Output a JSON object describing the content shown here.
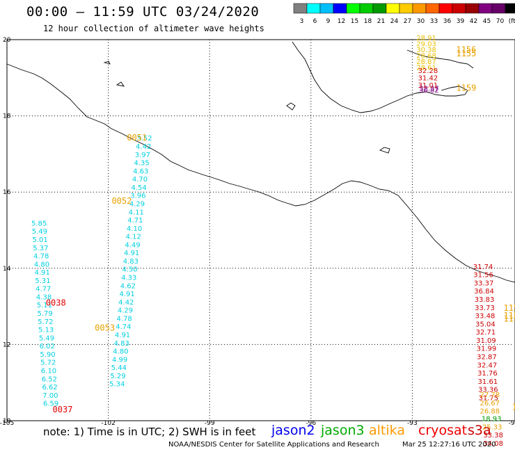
{
  "header": {
    "title": "00:00 – 11:59 UTC 03/24/2020",
    "subtitle": "12 hour collection of altimeter wave heights"
  },
  "colorbar": {
    "ticks": [
      "3",
      "6",
      "9",
      "12",
      "15",
      "18",
      "21",
      "24",
      "27",
      "30",
      "33",
      "36",
      "39",
      "42",
      "45",
      "70",
      "(ft)"
    ],
    "colors": [
      "#808080",
      "#00ffff",
      "#00bfff",
      "#0000ff",
      "#00ff00",
      "#00cc00",
      "#009900",
      "#ffff00",
      "#ffcc00",
      "#ff9900",
      "#ff6600",
      "#ff0000",
      "#cc0000",
      "#990000",
      "#800080",
      "#660066",
      "#000000"
    ]
  },
  "axes": {
    "x_ticks": [
      {
        "value": -105,
        "label": "-105"
      },
      {
        "value": -102,
        "label": "-102"
      },
      {
        "value": -99,
        "label": "-99"
      },
      {
        "value": -96,
        "label": "-96"
      },
      {
        "value": -93,
        "label": "-93"
      },
      {
        "value": -90,
        "label": "-90"
      }
    ],
    "y_ticks": [
      {
        "value": 20,
        "label": "20"
      },
      {
        "value": 18,
        "label": "18"
      },
      {
        "value": 16,
        "label": "16"
      },
      {
        "value": 14,
        "label": "14"
      },
      {
        "value": 12,
        "label": "12"
      },
      {
        "value": 10,
        "label": "10"
      }
    ],
    "xlim": [
      -105,
      -90
    ],
    "ylim": [
      10,
      20
    ]
  },
  "tracks": [
    {
      "color": "#00d0e0",
      "lon": -101.16,
      "lat_start": 17.35,
      "lat_step": -0.215,
      "values": [
        "3.52",
        "4.42",
        "3.97",
        "4.35",
        "4.63",
        "4.70",
        "4.54",
        "3.96",
        "4.29",
        "4.11",
        "4.71",
        "4.10",
        "4.12",
        "4.49",
        "4.91",
        "4.83",
        "4.50",
        "4.33",
        "4.62",
        "4.91",
        "4.42",
        "4.29",
        "4.78",
        "4.74",
        "4.91",
        "4.83",
        "4.80",
        "4.99",
        "5.44",
        "5.29",
        "5.34"
      ],
      "lon_drift": -0.027
    },
    {
      "color": "#00d0e0",
      "lon": -104.28,
      "lat_start": 15.12,
      "lat_step": -0.215,
      "values": [
        "5.85",
        "5.49",
        "5.01",
        "5.37",
        "4.78",
        "4.80",
        "4.91",
        "5.31",
        "4.77",
        "4.38",
        "5.11",
        "5.79",
        "5.72",
        "5.13",
        "5.49",
        "6.02",
        "5.90",
        "5.72",
        "6.10",
        "6.52",
        "6.62",
        "7.00",
        "6.59"
      ],
      "lon_drift": 0.016
    },
    {
      "color": "#cc0000",
      "lon": -91.2,
      "lat_start": 13.98,
      "lat_step": -0.215,
      "values": [
        "31.74",
        "31.56",
        "33.37",
        "36.84",
        "33.83",
        "33.73",
        "33.48",
        "35.04",
        "32.71",
        "31.09",
        "31.99",
        "32.87",
        "32.47",
        "31.76",
        "31.61",
        "33.36",
        "31.75"
      ],
      "lon_drift": 0.01
    },
    {
      "color": "#e8a000",
      "lon": -91.0,
      "lat_start": 10.62,
      "lat_step": -0.215,
      "values": [
        "27.78",
        "26.67",
        "26.88"
      ]
    },
    {
      "color": "#009900",
      "lon": -90.95,
      "lat_start": 9.99,
      "lat_step": -0.215,
      "values": [
        "18.93"
      ]
    },
    {
      "color": "#e8a000",
      "lon": -90.93,
      "lat_start": 9.77,
      "lat_step": -0.215,
      "values": [
        "25.33"
      ]
    },
    {
      "color": "#cc0000",
      "lon": -90.9,
      "lat_start": 9.56,
      "lat_step": -0.215,
      "values": [
        "33.38",
        "34.08"
      ]
    },
    {
      "color": "#e8c000",
      "lon": -92.88,
      "lat_start": 19.98,
      "lat_step": -0.155,
      "values": [
        "28.91",
        "29.03",
        "30.38",
        "28.68",
        "28.87",
        "28.61"
      ]
    },
    {
      "color": "#cc0000",
      "lon": -92.83,
      "lat_start": 19.12,
      "lat_step": -0.19,
      "values": [
        "32.28",
        "31.42",
        "31.01"
      ]
    },
    {
      "color": "#800080",
      "lon": -92.8,
      "lat_start": 18.66,
      "lat_step": -0.05,
      "values": [
        "32.37",
        "30.82"
      ]
    }
  ],
  "time_labels": [
    {
      "text": "0051",
      "color": "#e8a000",
      "lon": -101.45,
      "lat": 17.35
    },
    {
      "text": "0052",
      "color": "#e8a000",
      "lon": -101.9,
      "lat": 15.69
    },
    {
      "text": "0053",
      "color": "#e8a000",
      "lon": -102.4,
      "lat": 12.36
    },
    {
      "text": "0038",
      "color": "#e00000",
      "lon": -103.85,
      "lat": 13.02
    },
    {
      "text": "0037",
      "color": "#e00000",
      "lon": -103.65,
      "lat": 10.22
    },
    {
      "text": "1156",
      "color": "#e8a000",
      "lon": -91.7,
      "lat": 19.66
    },
    {
      "text": "1155",
      "color": "#e8a000",
      "lon": -91.7,
      "lat": 19.56
    },
    {
      "text": "1159",
      "color": "#e8a000",
      "lon": -91.7,
      "lat": 18.66
    },
    {
      "text": "1154",
      "color": "#e8a000",
      "lon": -90.3,
      "lat": 12.88
    },
    {
      "text": "1154",
      "color": "#e8a000",
      "lon": -90.3,
      "lat": 12.68
    },
    {
      "text": "1153",
      "color": "#e8a000",
      "lon": -90.3,
      "lat": 12.6
    },
    {
      "text": "11",
      "color": "#e8a000",
      "lon": -90.05,
      "lat": 10.28
    }
  ],
  "note": "note:  1) Time is in UTC;  2) SWH is in feet",
  "legend": [
    {
      "text": "jason2",
      "color": "#0000ee"
    },
    {
      "text": "jason3",
      "color": "#00aa00"
    },
    {
      "text": "altika",
      "color": "#ff9900"
    },
    {
      "text": "cryosat",
      "color": "#ee0000"
    },
    {
      "text": "s3a",
      "color": "#cc0000"
    }
  ],
  "credit": "NOAA/NESDIS Center for Satellite Applications and Research",
  "timestamp": "Mar 25 12:27:16 UTC 2020"
}
